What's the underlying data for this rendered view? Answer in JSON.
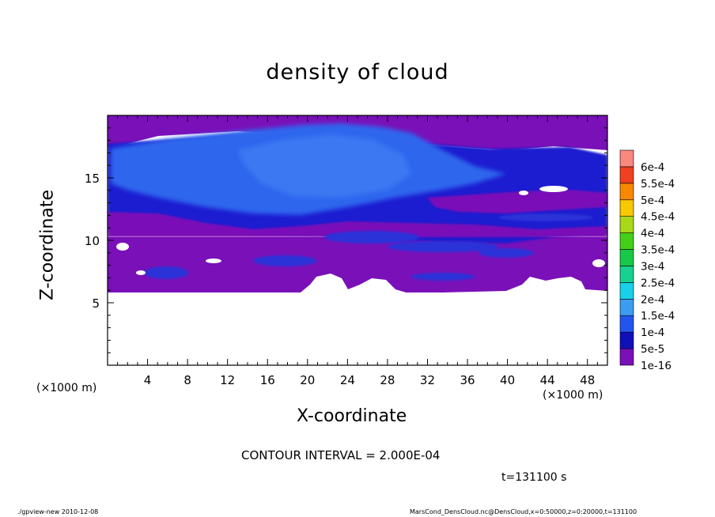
{
  "chart_data": {
    "type": "heatmap",
    "title": "density of cloud",
    "xlabel": "X-coordinate",
    "ylabel": "Z-coordinate",
    "x_unit_label": "(×1000 m)",
    "xlim": [
      0,
      50
    ],
    "ylim": [
      0,
      20
    ],
    "x_ticks": [
      4,
      8,
      12,
      16,
      20,
      24,
      28,
      32,
      36,
      40,
      44,
      48
    ],
    "y_ticks": [
      5,
      10,
      15
    ],
    "colorbar": {
      "levels": [
        "1e-16",
        "5e-5",
        "1e-4",
        "1.5e-4",
        "2e-4",
        "2.5e-4",
        "3e-4",
        "3.5e-4",
        "4e-4",
        "4.5e-4",
        "5e-4",
        "5.5e-4",
        "6e-4"
      ],
      "colors": [
        "#7a10b8",
        "#1010b8",
        "#2255ee",
        "#3c9cf0",
        "#18d0e8",
        "#18d090",
        "#18c848",
        "#44d018",
        "#a8d818",
        "#f8c800",
        "#f88800",
        "#f04020",
        "#f88880"
      ]
    },
    "regions": [
      {
        "description_level": "1e-16",
        "z_range": [
          6,
          10.5
        ]
      },
      {
        "description_level": "1e-4",
        "z_range": [
          12,
          19
        ]
      },
      {
        "description_level": "5e-5",
        "z_range": [
          9,
          12
        ]
      }
    ],
    "contour_interval": "CONTOUR INTERVAL = 2.000E-04",
    "time": "t=131100 s"
  },
  "footer": {
    "left": "./gpview-new  2010-12-08",
    "right": "MarsCond_DensCloud.nc@DensCloud,x=0:50000,z=0:20000,t=131100"
  }
}
